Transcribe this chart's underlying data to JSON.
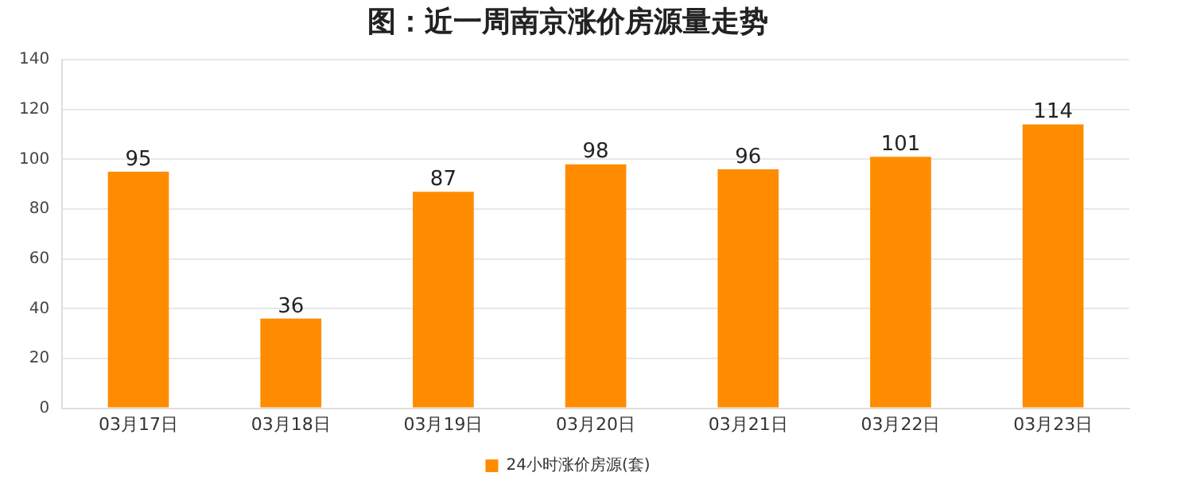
{
  "chart_data": {
    "type": "bar",
    "title": "图：近一周南京涨价房源量走势",
    "categories": [
      "03月17日",
      "03月18日",
      "03月19日",
      "03月20日",
      "03月21日",
      "03月22日",
      "03月23日"
    ],
    "series": [
      {
        "name": "24小时涨价房源(套)",
        "color": "#ff8c00",
        "values": [
          95,
          36,
          87,
          98,
          96,
          101,
          114
        ]
      }
    ],
    "ylim": [
      0,
      140
    ],
    "yticks": [
      0,
      20,
      40,
      60,
      80,
      100,
      120,
      140
    ],
    "grid": "y",
    "legend": "bottom",
    "data_labels": true
  }
}
